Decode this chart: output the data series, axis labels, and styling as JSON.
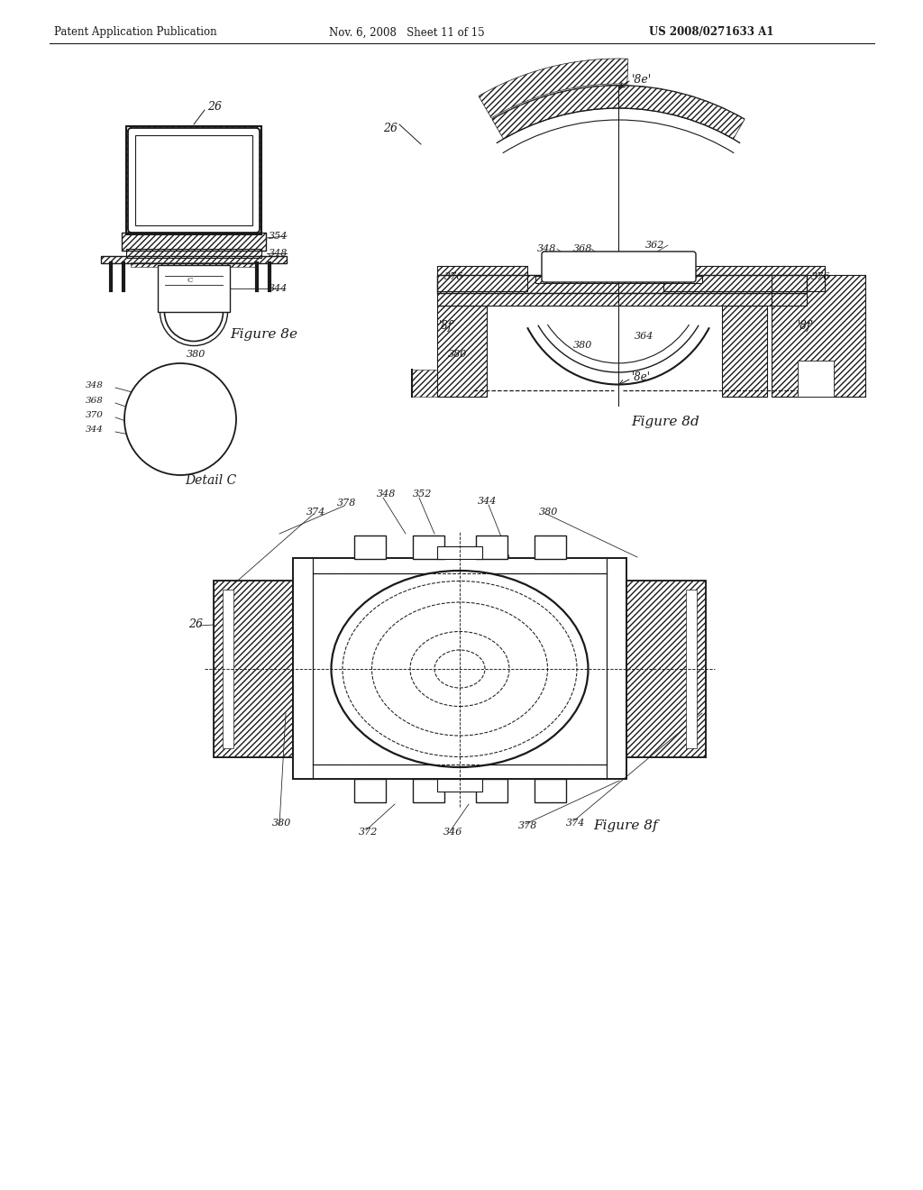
{
  "bg": "#ffffff",
  "lc": "#1a1a1a",
  "header_left": "Patent Application Publication",
  "header_mid": "Nov. 6, 2008   Sheet 11 of 15",
  "header_right": "US 2008/0271633 A1",
  "fig8e_label": "Figure 8e",
  "fig8d_label": "Figure 8d",
  "fig8f_label": "Figure 8f",
  "detail_c_label": "Detail C"
}
